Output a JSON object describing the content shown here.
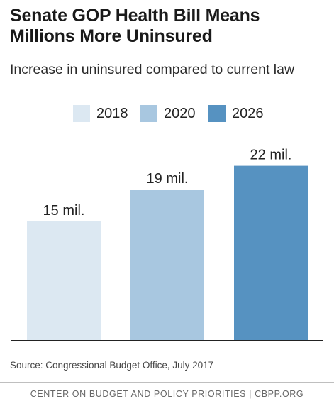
{
  "chart_data": {
    "type": "bar",
    "title": "Senate GOP Health Bill Means Millions More Uninsured",
    "subtitle": "Increase in uninsured compared to current law",
    "categories": [
      "2018",
      "2020",
      "2026"
    ],
    "values": [
      15,
      19,
      22
    ],
    "value_labels": [
      "15 mil.",
      "19 mil.",
      "22 mil."
    ],
    "unit": "mil.",
    "colors": [
      "#dce8f2",
      "#a8c7e0",
      "#5692c1"
    ],
    "legend": [
      {
        "name": "2018",
        "color": "#dce8f2"
      },
      {
        "name": "2020",
        "color": "#a8c7e0"
      },
      {
        "name": "2026",
        "color": "#5692c1"
      }
    ],
    "legend_position": "top",
    "ylim": [
      0,
      25
    ],
    "grid": false,
    "axis_line_color": "#222222"
  },
  "source": "Source: Congressional Budget Office, July 2017",
  "footer": "CENTER ON BUDGET AND POLICY PRIORITIES | CBPP.ORG"
}
